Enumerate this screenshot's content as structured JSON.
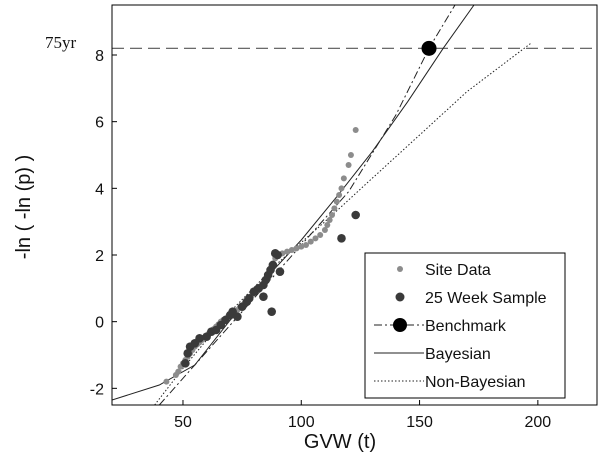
{
  "chart_data": {
    "type": "scatter",
    "xlabel": "GVW (t)",
    "ylabel": "-ln ( -ln (p) )",
    "xlim": [
      20,
      225
    ],
    "ylim": [
      -2.5,
      9.5
    ],
    "xticks": [
      50,
      100,
      150,
      200
    ],
    "yticks": [
      -2,
      0,
      2,
      4,
      6,
      8
    ],
    "grid": false,
    "legend_position": "bottom-right",
    "colors": {
      "site": "#8c8c8c",
      "sample": "#3a3a3a",
      "benchmark": "#000000",
      "line": "#222222",
      "frame": "#000000"
    },
    "annotations": [
      {
        "label": "75yr",
        "y": 8.2,
        "style": "dashed-horizontal"
      }
    ],
    "series": [
      {
        "name": "Site Data",
        "marker": "small-dot",
        "points": [
          [
            43,
            -1.8
          ],
          [
            47,
            -1.6
          ],
          [
            48,
            -1.5
          ],
          [
            49,
            -1.35
          ],
          [
            50,
            -1.25
          ],
          [
            51,
            -1.15
          ],
          [
            52,
            -1.05
          ],
          [
            53,
            -0.95
          ],
          [
            54,
            -0.85
          ],
          [
            55,
            -0.75
          ],
          [
            56,
            -0.68
          ],
          [
            57,
            -0.62
          ],
          [
            58,
            -0.55
          ],
          [
            59,
            -0.48
          ],
          [
            60,
            -0.42
          ],
          [
            61,
            -0.35
          ],
          [
            62,
            -0.28
          ],
          [
            63,
            -0.22
          ],
          [
            64,
            -0.15
          ],
          [
            65,
            -0.08
          ],
          [
            66,
            0.0
          ],
          [
            67,
            0.05
          ],
          [
            68,
            0.1
          ],
          [
            69,
            0.15
          ],
          [
            70,
            0.2
          ],
          [
            71,
            0.25
          ],
          [
            72,
            0.3
          ],
          [
            73,
            0.35
          ],
          [
            74,
            0.42
          ],
          [
            75,
            0.48
          ],
          [
            76,
            0.55
          ],
          [
            77,
            0.62
          ],
          [
            78,
            0.7
          ],
          [
            79,
            0.78
          ],
          [
            80,
            0.85
          ],
          [
            81,
            0.92
          ],
          [
            82,
            0.98
          ],
          [
            83,
            1.05
          ],
          [
            84,
            1.12
          ],
          [
            85,
            1.2
          ],
          [
            86,
            1.3
          ],
          [
            86.5,
            1.45
          ],
          [
            87,
            1.6
          ],
          [
            88,
            1.75
          ],
          [
            89,
            1.9
          ],
          [
            90,
            2.0
          ],
          [
            92,
            2.05
          ],
          [
            94,
            2.1
          ],
          [
            96,
            2.15
          ],
          [
            98,
            2.2
          ],
          [
            100,
            2.25
          ],
          [
            102,
            2.3
          ],
          [
            104,
            2.4
          ],
          [
            106,
            2.5
          ],
          [
            108,
            2.6
          ],
          [
            110,
            2.75
          ],
          [
            111,
            2.9
          ],
          [
            112,
            3.05
          ],
          [
            113,
            3.2
          ],
          [
            114,
            3.4
          ],
          [
            115,
            3.6
          ],
          [
            116,
            3.8
          ],
          [
            117,
            4.0
          ],
          [
            118,
            4.3
          ],
          [
            120,
            4.7
          ],
          [
            121,
            5.0
          ],
          [
            123,
            5.75
          ]
        ]
      },
      {
        "name": "25 Week Sample",
        "marker": "dot",
        "points": [
          [
            51,
            -1.25
          ],
          [
            52,
            -0.95
          ],
          [
            53,
            -0.75
          ],
          [
            55,
            -0.65
          ],
          [
            57,
            -0.5
          ],
          [
            60,
            -0.45
          ],
          [
            62,
            -0.3
          ],
          [
            64,
            -0.25
          ],
          [
            66,
            -0.1
          ],
          [
            68,
            0.05
          ],
          [
            70,
            0.2
          ],
          [
            71,
            0.3
          ],
          [
            73,
            0.15
          ],
          [
            75,
            0.45
          ],
          [
            78,
            0.7
          ],
          [
            80,
            0.9
          ],
          [
            82,
            1.0
          ],
          [
            84,
            1.1
          ],
          [
            85,
            1.25
          ],
          [
            86,
            1.4
          ],
          [
            87,
            1.55
          ],
          [
            88,
            1.7
          ],
          [
            89,
            2.05
          ],
          [
            90,
            2.0
          ],
          [
            91,
            1.5
          ],
          [
            87.5,
            0.3
          ],
          [
            84,
            0.75
          ],
          [
            77,
            0.6
          ],
          [
            117,
            2.5
          ],
          [
            123,
            3.2
          ]
        ]
      },
      {
        "name": "Benchmark",
        "marker": "large-dot-dashdot",
        "points": [
          [
            154,
            8.2
          ]
        ],
        "line": [
          [
            40,
            -2.5
          ],
          [
            80,
            0.7
          ],
          [
            120,
            3.9
          ],
          [
            140,
            6.2
          ],
          [
            154,
            8.2
          ],
          [
            165,
            9.5
          ]
        ]
      },
      {
        "name": "Bayesian",
        "line_style": "solid",
        "line": [
          [
            20,
            -2.35
          ],
          [
            40,
            -1.9
          ],
          [
            55,
            -1.3
          ],
          [
            70,
            0.05
          ],
          [
            85,
            1.3
          ],
          [
            100,
            2.45
          ],
          [
            115,
            3.75
          ],
          [
            130,
            5.1
          ],
          [
            145,
            6.6
          ],
          [
            160,
            8.2
          ],
          [
            173,
            9.5
          ]
        ]
      },
      {
        "name": "Non-Bayesian",
        "line_style": "dotted",
        "line": [
          [
            38,
            -2.5
          ],
          [
            50,
            -1.4
          ],
          [
            70,
            0.3
          ],
          [
            90,
            1.75
          ],
          [
            110,
            3.0
          ],
          [
            130,
            4.3
          ],
          [
            150,
            5.6
          ],
          [
            170,
            6.9
          ],
          [
            197,
            8.35
          ]
        ]
      }
    ]
  }
}
